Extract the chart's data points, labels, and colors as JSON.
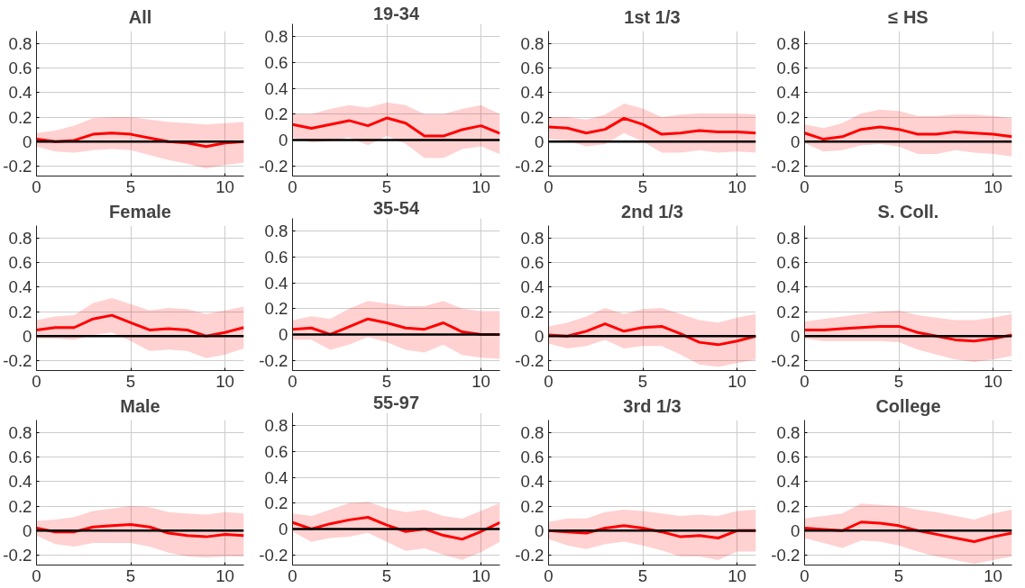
{
  "chart_data": [
    {
      "type": "line",
      "title": "All",
      "x": [
        0,
        1,
        2,
        3,
        4,
        5,
        6,
        7,
        8,
        9,
        10,
        11
      ],
      "xlim": [
        0,
        11
      ],
      "ylim": [
        -0.28,
        0.9
      ],
      "xticks": [
        0,
        5,
        10
      ],
      "yticks": [
        -0.2,
        0,
        0.2,
        0.4,
        0.6,
        0.8
      ],
      "grid": true,
      "ref_lines": [
        {
          "axis": "y",
          "value": 0,
          "color": "#000000"
        }
      ],
      "series": [
        {
          "color": "#ff0000",
          "values": [
            0.02,
            0.0,
            0.01,
            0.06,
            0.07,
            0.06,
            0.03,
            0.0,
            -0.01,
            -0.04,
            -0.01,
            0.0
          ],
          "upper": [
            0.07,
            0.09,
            0.13,
            0.19,
            0.2,
            0.2,
            0.18,
            0.16,
            0.15,
            0.14,
            0.15,
            0.16
          ],
          "lower": [
            -0.04,
            -0.08,
            -0.09,
            -0.07,
            -0.06,
            -0.07,
            -0.11,
            -0.15,
            -0.18,
            -0.22,
            -0.19,
            -0.17
          ]
        }
      ]
    },
    {
      "type": "line",
      "title": "19-34",
      "x": [
        0,
        1,
        2,
        3,
        4,
        5,
        6,
        7,
        8,
        9,
        10,
        11
      ],
      "xlim": [
        0,
        11
      ],
      "ylim": [
        -0.28,
        0.9
      ],
      "xticks": [
        0,
        5,
        10
      ],
      "yticks": [
        -0.2,
        0,
        0.2,
        0.4,
        0.6,
        0.8
      ],
      "grid": true,
      "ref_lines": [
        {
          "axis": "y",
          "value": 0,
          "color": "#000000"
        }
      ],
      "series": [
        {
          "color": "#ff0000",
          "values": [
            0.12,
            0.09,
            0.12,
            0.15,
            0.11,
            0.17,
            0.13,
            0.03,
            0.03,
            0.08,
            0.11,
            0.05
          ],
          "upper": [
            0.2,
            0.2,
            0.24,
            0.27,
            0.25,
            0.29,
            0.27,
            0.2,
            0.2,
            0.24,
            0.27,
            0.2
          ],
          "lower": [
            0.02,
            -0.02,
            -0.01,
            0.02,
            -0.04,
            0.03,
            -0.03,
            -0.14,
            -0.14,
            -0.07,
            -0.05,
            -0.11
          ]
        }
      ]
    },
    {
      "type": "line",
      "title": "1st 1/3",
      "x": [
        0,
        1,
        2,
        3,
        4,
        5,
        6,
        7,
        8,
        9,
        10,
        11
      ],
      "xlim": [
        0,
        11
      ],
      "ylim": [
        -0.28,
        0.9
      ],
      "xticks": [
        0,
        5,
        10
      ],
      "yticks": [
        -0.2,
        0,
        0.2,
        0.4,
        0.6,
        0.8
      ],
      "grid": true,
      "ref_lines": [
        {
          "axis": "y",
          "value": 0,
          "color": "#000000"
        }
      ],
      "series": [
        {
          "color": "#ff0000",
          "values": [
            0.12,
            0.11,
            0.07,
            0.1,
            0.19,
            0.14,
            0.06,
            0.07,
            0.09,
            0.08,
            0.08,
            0.07
          ],
          "upper": [
            0.2,
            0.2,
            0.18,
            0.22,
            0.31,
            0.27,
            0.2,
            0.22,
            0.23,
            0.23,
            0.23,
            0.22
          ],
          "lower": [
            0.02,
            0.01,
            -0.04,
            -0.02,
            0.07,
            0.0,
            -0.09,
            -0.09,
            -0.07,
            -0.09,
            -0.08,
            -0.09
          ]
        }
      ]
    },
    {
      "type": "line",
      "title": "≤ HS",
      "x": [
        0,
        1,
        2,
        3,
        4,
        5,
        6,
        7,
        8,
        9,
        10,
        11
      ],
      "xlim": [
        0,
        11
      ],
      "ylim": [
        -0.28,
        0.9
      ],
      "xticks": [
        0,
        5,
        10
      ],
      "yticks": [
        -0.2,
        0,
        0.2,
        0.4,
        0.6,
        0.8
      ],
      "grid": true,
      "ref_lines": [
        {
          "axis": "y",
          "value": 0,
          "color": "#000000"
        }
      ],
      "series": [
        {
          "color": "#ff0000",
          "values": [
            0.07,
            0.02,
            0.04,
            0.1,
            0.12,
            0.1,
            0.06,
            0.06,
            0.08,
            0.07,
            0.06,
            0.04
          ],
          "upper": [
            0.14,
            0.11,
            0.15,
            0.23,
            0.26,
            0.25,
            0.21,
            0.21,
            0.22,
            0.22,
            0.21,
            0.19
          ],
          "lower": [
            -0.01,
            -0.08,
            -0.07,
            -0.03,
            -0.02,
            -0.04,
            -0.1,
            -0.1,
            -0.07,
            -0.09,
            -0.1,
            -0.12
          ]
        }
      ]
    },
    {
      "type": "line",
      "title": "Female",
      "x": [
        0,
        1,
        2,
        3,
        4,
        5,
        6,
        7,
        8,
        9,
        10,
        11
      ],
      "xlim": [
        0,
        11
      ],
      "ylim": [
        -0.28,
        0.9
      ],
      "xticks": [
        0,
        5,
        10
      ],
      "yticks": [
        -0.2,
        0,
        0.2,
        0.4,
        0.6,
        0.8
      ],
      "grid": true,
      "ref_lines": [
        {
          "axis": "y",
          "value": 0,
          "color": "#000000"
        }
      ],
      "series": [
        {
          "color": "#ff0000",
          "values": [
            0.05,
            0.07,
            0.07,
            0.14,
            0.17,
            0.11,
            0.05,
            0.06,
            0.05,
            0.0,
            0.03,
            0.07
          ],
          "upper": [
            0.13,
            0.16,
            0.17,
            0.27,
            0.31,
            0.26,
            0.21,
            0.23,
            0.22,
            0.18,
            0.21,
            0.24
          ],
          "lower": [
            -0.02,
            -0.02,
            -0.03,
            0.01,
            0.03,
            -0.04,
            -0.12,
            -0.11,
            -0.12,
            -0.18,
            -0.15,
            -0.1
          ]
        }
      ]
    },
    {
      "type": "line",
      "title": "35-54",
      "x": [
        0,
        1,
        2,
        3,
        4,
        5,
        6,
        7,
        8,
        9,
        10,
        11
      ],
      "xlim": [
        0,
        11
      ],
      "ylim": [
        -0.28,
        0.9
      ],
      "xticks": [
        0,
        5,
        10
      ],
      "yticks": [
        -0.2,
        0,
        0.2,
        0.4,
        0.6,
        0.8
      ],
      "grid": true,
      "ref_lines": [
        {
          "axis": "y",
          "value": 0,
          "color": "#000000"
        }
      ],
      "series": [
        {
          "color": "#ff0000",
          "values": [
            0.04,
            0.05,
            0.0,
            0.06,
            0.12,
            0.09,
            0.05,
            0.04,
            0.09,
            0.02,
            0.0,
            0.0
          ],
          "upper": [
            0.11,
            0.14,
            0.12,
            0.2,
            0.26,
            0.24,
            0.22,
            0.22,
            0.26,
            0.2,
            0.18,
            0.18
          ],
          "lower": [
            -0.04,
            -0.04,
            -0.12,
            -0.08,
            -0.02,
            -0.06,
            -0.12,
            -0.14,
            -0.08,
            -0.16,
            -0.18,
            -0.19
          ]
        }
      ]
    },
    {
      "type": "line",
      "title": "2nd 1/3",
      "x": [
        0,
        1,
        2,
        3,
        4,
        5,
        6,
        7,
        8,
        9,
        10,
        11
      ],
      "xlim": [
        0,
        11
      ],
      "ylim": [
        -0.28,
        0.9
      ],
      "xticks": [
        0,
        5,
        10
      ],
      "yticks": [
        -0.2,
        0,
        0.2,
        0.4,
        0.6,
        0.8
      ],
      "grid": true,
      "ref_lines": [
        {
          "axis": "y",
          "value": 0,
          "color": "#000000"
        }
      ],
      "series": [
        {
          "color": "#ff0000",
          "values": [
            0.01,
            0.0,
            0.04,
            0.1,
            0.04,
            0.07,
            0.08,
            0.02,
            -0.05,
            -0.07,
            -0.04,
            0.0
          ],
          "upper": [
            0.08,
            0.11,
            0.16,
            0.23,
            0.18,
            0.22,
            0.23,
            0.18,
            0.13,
            0.11,
            0.15,
            0.18
          ],
          "lower": [
            -0.06,
            -0.1,
            -0.08,
            -0.03,
            -0.1,
            -0.08,
            -0.08,
            -0.15,
            -0.23,
            -0.25,
            -0.22,
            -0.19
          ]
        }
      ]
    },
    {
      "type": "line",
      "title": "S. Coll.",
      "x": [
        0,
        1,
        2,
        3,
        4,
        5,
        6,
        7,
        8,
        9,
        10,
        11
      ],
      "xlim": [
        0,
        11
      ],
      "ylim": [
        -0.28,
        0.9
      ],
      "xticks": [
        0,
        5,
        10
      ],
      "yticks": [
        -0.2,
        0,
        0.2,
        0.4,
        0.6,
        0.8
      ],
      "grid": true,
      "ref_lines": [
        {
          "axis": "y",
          "value": 0,
          "color": "#000000"
        }
      ],
      "series": [
        {
          "color": "#ff0000",
          "values": [
            0.05,
            0.05,
            0.06,
            0.07,
            0.08,
            0.08,
            0.03,
            0.0,
            -0.03,
            -0.04,
            -0.02,
            0.01
          ],
          "upper": [
            0.12,
            0.14,
            0.16,
            0.18,
            0.2,
            0.21,
            0.17,
            0.15,
            0.13,
            0.13,
            0.15,
            0.18
          ],
          "lower": [
            -0.02,
            -0.04,
            -0.04,
            -0.04,
            -0.04,
            -0.05,
            -0.11,
            -0.15,
            -0.19,
            -0.21,
            -0.19,
            -0.16
          ]
        }
      ]
    },
    {
      "type": "line",
      "title": "Male",
      "x": [
        0,
        1,
        2,
        3,
        4,
        5,
        6,
        7,
        8,
        9,
        10,
        11
      ],
      "xlim": [
        0,
        11
      ],
      "ylim": [
        -0.28,
        0.9
      ],
      "xticks": [
        0,
        5,
        10
      ],
      "yticks": [
        -0.2,
        0,
        0.2,
        0.4,
        0.6,
        0.8
      ],
      "grid": true,
      "ref_lines": [
        {
          "axis": "y",
          "value": 0,
          "color": "#000000"
        }
      ],
      "series": [
        {
          "color": "#ff0000",
          "values": [
            0.02,
            -0.01,
            -0.01,
            0.03,
            0.04,
            0.05,
            0.03,
            -0.02,
            -0.04,
            -0.05,
            -0.03,
            -0.04
          ],
          "upper": [
            0.08,
            0.09,
            0.11,
            0.16,
            0.18,
            0.2,
            0.19,
            0.15,
            0.14,
            0.13,
            0.15,
            0.14
          ],
          "lower": [
            -0.04,
            -0.11,
            -0.13,
            -0.1,
            -0.1,
            -0.1,
            -0.13,
            -0.18,
            -0.21,
            -0.22,
            -0.21,
            -0.21
          ]
        }
      ]
    },
    {
      "type": "line",
      "title": "55-97",
      "x": [
        0,
        1,
        2,
        3,
        4,
        5,
        6,
        7,
        8,
        9,
        10,
        11
      ],
      "xlim": [
        0,
        11
      ],
      "ylim": [
        -0.28,
        0.9
      ],
      "xticks": [
        0,
        5,
        10
      ],
      "yticks": [
        -0.2,
        0,
        0.2,
        0.4,
        0.6,
        0.8
      ],
      "grid": true,
      "ref_lines": [
        {
          "axis": "y",
          "value": 0,
          "color": "#000000"
        }
      ],
      "series": [
        {
          "color": "#ff0000",
          "values": [
            0.05,
            0.0,
            0.04,
            0.07,
            0.09,
            0.03,
            -0.02,
            0.0,
            -0.05,
            -0.08,
            -0.02,
            0.05
          ],
          "upper": [
            0.12,
            0.1,
            0.15,
            0.2,
            0.21,
            0.16,
            0.13,
            0.15,
            0.1,
            0.08,
            0.14,
            0.2
          ],
          "lower": [
            -0.02,
            -0.1,
            -0.07,
            -0.06,
            -0.03,
            -0.1,
            -0.17,
            -0.15,
            -0.2,
            -0.24,
            -0.18,
            -0.1
          ]
        }
      ]
    },
    {
      "type": "line",
      "title": "3rd 1/3",
      "x": [
        0,
        1,
        2,
        3,
        4,
        5,
        6,
        7,
        8,
        9,
        10,
        11
      ],
      "xlim": [
        0,
        11
      ],
      "ylim": [
        -0.28,
        0.9
      ],
      "xticks": [
        0,
        5,
        10
      ],
      "yticks": [
        -0.2,
        0,
        0.2,
        0.4,
        0.6,
        0.8
      ],
      "grid": true,
      "ref_lines": [
        {
          "axis": "y",
          "value": 0,
          "color": "#000000"
        }
      ],
      "series": [
        {
          "color": "#ff0000",
          "values": [
            0.0,
            -0.01,
            -0.02,
            0.02,
            0.04,
            0.02,
            -0.01,
            -0.05,
            -0.04,
            -0.06,
            0.0,
            0.0
          ],
          "upper": [
            0.07,
            0.1,
            0.1,
            0.15,
            0.17,
            0.16,
            0.14,
            0.12,
            0.13,
            0.12,
            0.16,
            0.17
          ],
          "lower": [
            -0.07,
            -0.12,
            -0.15,
            -0.11,
            -0.09,
            -0.12,
            -0.16,
            -0.21,
            -0.21,
            -0.24,
            -0.17,
            -0.17
          ]
        }
      ]
    },
    {
      "type": "line",
      "title": "College",
      "x": [
        0,
        1,
        2,
        3,
        4,
        5,
        6,
        7,
        8,
        9,
        10,
        11
      ],
      "xlim": [
        0,
        11
      ],
      "ylim": [
        -0.28,
        0.9
      ],
      "xticks": [
        0,
        5,
        10
      ],
      "yticks": [
        -0.2,
        0,
        0.2,
        0.4,
        0.6,
        0.8
      ],
      "grid": true,
      "ref_lines": [
        {
          "axis": "y",
          "value": 0,
          "color": "#000000"
        }
      ],
      "series": [
        {
          "color": "#ff0000",
          "values": [
            0.02,
            0.01,
            0.0,
            0.07,
            0.06,
            0.04,
            0.0,
            -0.03,
            -0.06,
            -0.09,
            -0.05,
            -0.02
          ],
          "upper": [
            0.1,
            0.12,
            0.14,
            0.22,
            0.21,
            0.2,
            0.17,
            0.15,
            0.12,
            0.09,
            0.14,
            0.17
          ],
          "lower": [
            -0.06,
            -0.1,
            -0.14,
            -0.08,
            -0.09,
            -0.12,
            -0.17,
            -0.21,
            -0.24,
            -0.27,
            -0.24,
            -0.21
          ]
        }
      ]
    }
  ]
}
